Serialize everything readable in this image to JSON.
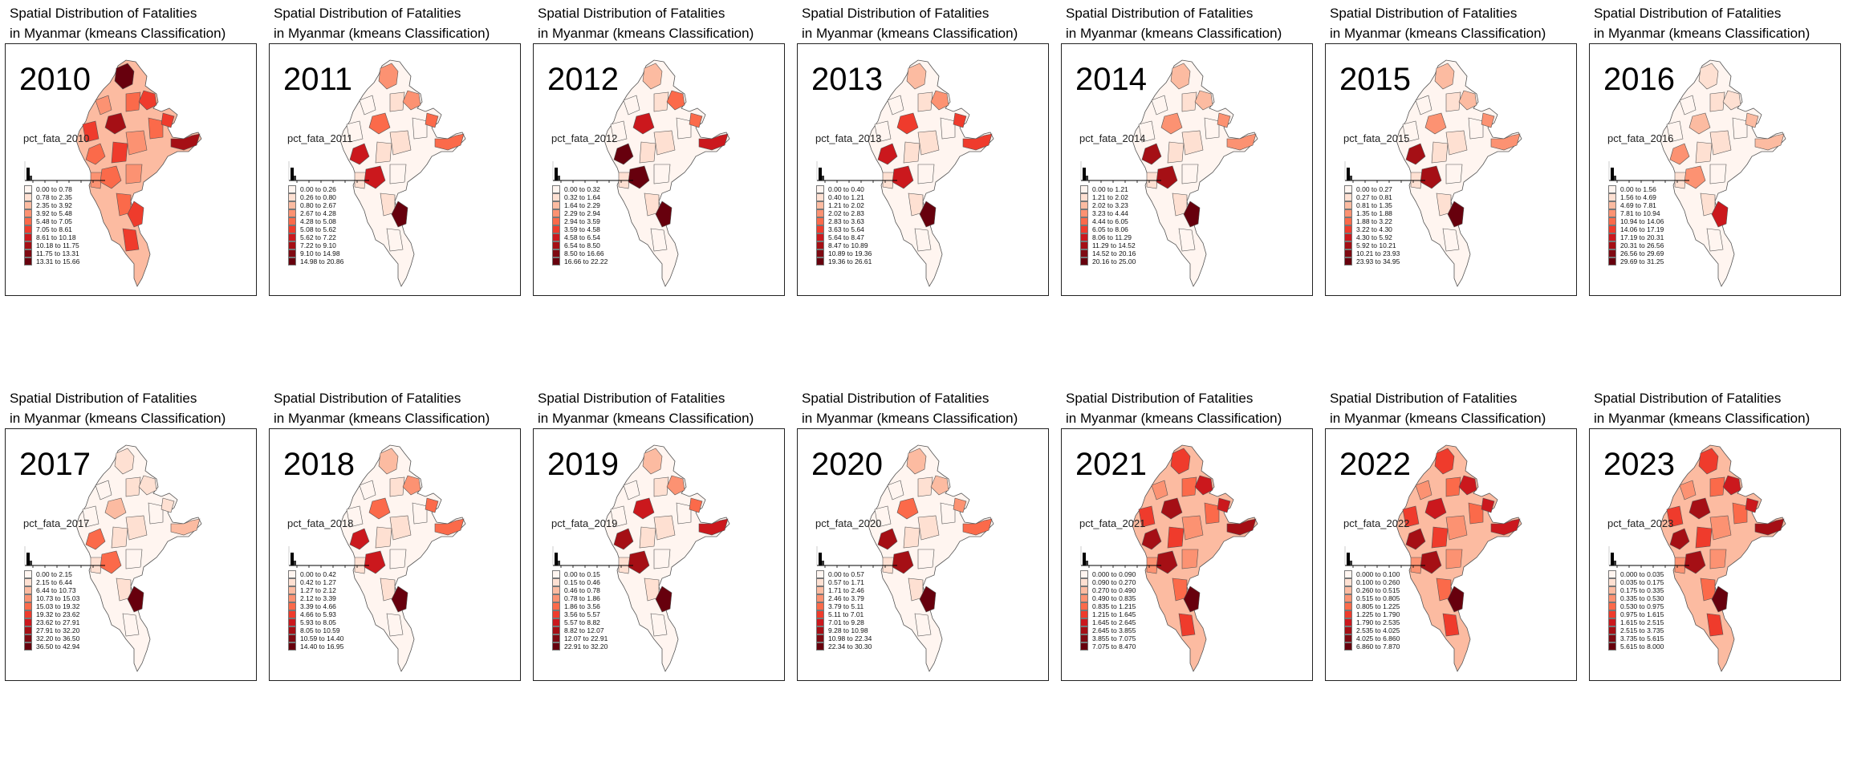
{
  "title_line1": "Spatial Distribution of Fatalities",
  "title_line2": "in Myanmar (kmeans Classification)",
  "palette": [
    "#fff5f0",
    "#fee0d2",
    "#fcbba1",
    "#fc9272",
    "#fb6a4a",
    "#ef3b2c",
    "#cb181d",
    "#a50f15",
    "#67000d"
  ],
  "panels": [
    {
      "year": "2010",
      "variable": "pct_fata_2010",
      "classes": [
        "0.00 to 0.78",
        "0.78 to 2.35",
        "2.35 to 3.92",
        "3.92 to 5.48",
        "5.48 to 7.05",
        "7.05 to 8.61",
        "8.61 to 10.18",
        "10.18 to 11.75",
        "11.75 to 13.31",
        "13.31 to 15.66"
      ],
      "heat": [
        9,
        5,
        5,
        7,
        4,
        5
      ]
    },
    {
      "year": "2011",
      "variable": "pct_fata_2011",
      "classes": [
        "0.00 to 0.26",
        "0.26 to 0.80",
        "0.80 to 2.67",
        "2.67 to 4.28",
        "4.28 to 5.08",
        "5.08 to 5.62",
        "5.62 to 7.22",
        "7.22 to 9.10",
        "9.10 to 14.98",
        "14.98 to 20.86"
      ],
      "heat": [
        3,
        3,
        4,
        4,
        6,
        8
      ]
    },
    {
      "year": "2012",
      "variable": "pct_fata_2012",
      "classes": [
        "0.00 to 0.32",
        "0.32 to 1.64",
        "1.64 to 2.29",
        "2.29 to 2.94",
        "2.94 to 3.59",
        "3.59 to 4.58",
        "4.58 to 6.54",
        "6.54 to 8.50",
        "8.50 to 16.66",
        "16.66 to 22.22"
      ],
      "heat": [
        2,
        4,
        4,
        6,
        8,
        8
      ]
    },
    {
      "year": "2013",
      "variable": "pct_fata_2013",
      "classes": [
        "0.00 to 0.40",
        "0.40 to 1.21",
        "1.21 to 2.02",
        "2.02 to 2.83",
        "2.83 to 3.63",
        "3.63 to 5.64",
        "5.64 to 8.47",
        "8.47 to 10.89",
        "10.89 to 19.36",
        "19.36 to 26.61"
      ],
      "heat": [
        2,
        3,
        5,
        5,
        6,
        9
      ]
    },
    {
      "year": "2014",
      "variable": "pct_fata_2014",
      "classes": [
        "0.00 to 1.21",
        "1.21 to 2.02",
        "2.02 to 3.23",
        "3.23 to 4.44",
        "4.44 to 6.05",
        "6.05 to 8.06",
        "8.06 to 11.29",
        "11.29 to 14.52",
        "14.52 to 20.16",
        "20.16 to 25.00"
      ],
      "heat": [
        2,
        2,
        3,
        3,
        7,
        9
      ]
    },
    {
      "year": "2015",
      "variable": "pct_fata_2015",
      "classes": [
        "0.00 to 0.27",
        "0.27 to 0.81",
        "0.81 to 1.35",
        "1.35 to 1.88",
        "1.88 to 3.22",
        "3.22 to 4.30",
        "4.30 to 5.92",
        "5.92 to 10.21",
        "10.21 to 23.93",
        "23.93 to 34.95"
      ],
      "heat": [
        2,
        2,
        3,
        3,
        7,
        8
      ]
    },
    {
      "year": "2016",
      "variable": "pct_fata_2016",
      "classes": [
        "0.00 to 1.56",
        "1.56 to 4.69",
        "4.69 to 7.81",
        "7.81 to 10.94",
        "10.94 to 14.06",
        "14.06 to 17.19",
        "17.19 to 20.31",
        "20.31 to 26.56",
        "26.56 to 29.69",
        "29.69 to 31.25"
      ],
      "heat": [
        1,
        1,
        2,
        2,
        3,
        6
      ]
    },
    {
      "year": "2017",
      "variable": "pct_fata_2017",
      "classes": [
        "0.00 to 2.15",
        "2.15 to 6.44",
        "6.44 to 10.73",
        "10.73 to 15.03",
        "15.03 to 19.32",
        "19.32 to 23.62",
        "23.62 to 27.91",
        "27.91 to 32.20",
        "32.20 to 36.50",
        "36.50 to 42.94"
      ],
      "heat": [
        1,
        1,
        1,
        2,
        4,
        8
      ]
    },
    {
      "year": "2018",
      "variable": "pct_fata_2018",
      "classes": [
        "0.00 to 0.42",
        "0.42 to 1.27",
        "1.27 to 2.12",
        "2.12 to 3.39",
        "3.39 to 4.66",
        "4.66 to 5.93",
        "5.93 to 8.05",
        "8.05 to 10.59",
        "10.59 to 14.40",
        "14.40 to 16.95"
      ],
      "heat": [
        2,
        3,
        4,
        4,
        6,
        8
      ]
    },
    {
      "year": "2019",
      "variable": "pct_fata_2019",
      "classes": [
        "0.00 to 0.15",
        "0.15 to 0.46",
        "0.46 to 0.78",
        "0.78 to 1.86",
        "1.86 to 3.56",
        "3.56 to 5.57",
        "5.57 to 8.82",
        "8.82 to 12.07",
        "12.07 to 22.91",
        "22.91 to 32.20"
      ],
      "heat": [
        2,
        3,
        4,
        6,
        7,
        8
      ]
    },
    {
      "year": "2020",
      "variable": "pct_fata_2020",
      "classes": [
        "0.00 to 0.57",
        "0.57 to 1.71",
        "1.71 to 2.46",
        "2.46 to 3.79",
        "3.79 to 5.11",
        "5.11 to 7.01",
        "7.01 to 9.28",
        "9.28 to 10.98",
        "10.98 to 22.34",
        "22.34 to 30.30"
      ],
      "heat": [
        2,
        2,
        3,
        4,
        7,
        8
      ]
    },
    {
      "year": "2021",
      "variable": "pct_fata_2021",
      "classes": [
        "0.000 to 0.090",
        "0.090 to 0.270",
        "0.270 to 0.490",
        "0.490 to 0.835",
        "0.835 to 1.215",
        "1.215 to 1.645",
        "1.645 to 2.645",
        "2.645 to 3.855",
        "3.855 to 7.075",
        "7.075 to 8.470"
      ],
      "heat": [
        5,
        6,
        6,
        7,
        7,
        8
      ]
    },
    {
      "year": "2022",
      "variable": "pct_fata_2022",
      "classes": [
        "0.000 to 0.100",
        "0.100 to 0.260",
        "0.260 to 0.515",
        "0.515 to 0.805",
        "0.805 to 1.225",
        "1.225 to 1.790",
        "1.790 to 2.535",
        "2.535 to 4.025",
        "4.025 to 6.860",
        "6.860 to 7.870"
      ],
      "heat": [
        5,
        6,
        6,
        6,
        7,
        8
      ]
    },
    {
      "year": "2023",
      "variable": "pct_fata_2023",
      "classes": [
        "0.000 to 0.035",
        "0.035 to 0.175",
        "0.175 to 0.335",
        "0.335 to 0.530",
        "0.530 to 0.975",
        "0.975 to 1.615",
        "1.615 to 2.515",
        "2.515 to 3.735",
        "3.735 to 5.615",
        "5.615 to 8.000"
      ],
      "heat": [
        5,
        6,
        6,
        7,
        7,
        8
      ]
    }
  ]
}
